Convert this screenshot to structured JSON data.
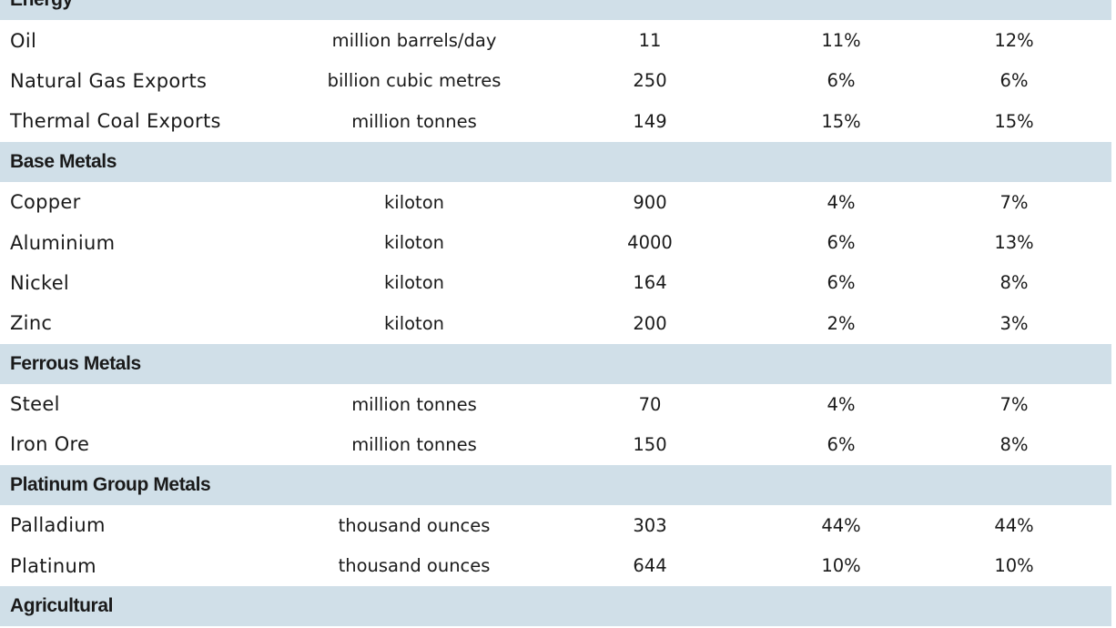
{
  "table": {
    "groups": [
      {
        "name": "Energy",
        "rows": [
          {
            "commodity": "Oil",
            "unit": "million barrels/day",
            "value": "11",
            "share_a": "11%",
            "share_b": "12%"
          },
          {
            "commodity": "Natural Gas Exports",
            "unit": "billion cubic metres",
            "value": "250",
            "share_a": "6%",
            "share_b": "6%"
          },
          {
            "commodity": "Thermal Coal Exports",
            "unit": "million tonnes",
            "value": "149",
            "share_a": "15%",
            "share_b": "15%"
          }
        ]
      },
      {
        "name": "Base Metals",
        "rows": [
          {
            "commodity": "Copper",
            "unit": "kiloton",
            "value": "900",
            "share_a": "4%",
            "share_b": "7%"
          },
          {
            "commodity": "Aluminium",
            "unit": "kiloton",
            "value": "4000",
            "share_a": "6%",
            "share_b": "13%"
          },
          {
            "commodity": "Nickel",
            "unit": "kiloton",
            "value": "164",
            "share_a": "6%",
            "share_b": "8%"
          },
          {
            "commodity": "Zinc",
            "unit": "kiloton",
            "value": "200",
            "share_a": "2%",
            "share_b": "3%"
          }
        ]
      },
      {
        "name": "Ferrous Metals",
        "rows": [
          {
            "commodity": "Steel",
            "unit": "million tonnes",
            "value": "70",
            "share_a": "4%",
            "share_b": "7%"
          },
          {
            "commodity": "Iron Ore",
            "unit": "million tonnes",
            "value": "150",
            "share_a": "6%",
            "share_b": "8%"
          }
        ]
      },
      {
        "name": "Platinum Group Metals",
        "rows": [
          {
            "commodity": "Palladium",
            "unit": "thousand ounces",
            "value": "303",
            "share_a": "44%",
            "share_b": "44%"
          },
          {
            "commodity": "Platinum",
            "unit": "thousand ounces",
            "value": "644",
            "share_a": "10%",
            "share_b": "10%"
          }
        ]
      },
      {
        "name": "Agricultural",
        "rows": []
      }
    ]
  }
}
